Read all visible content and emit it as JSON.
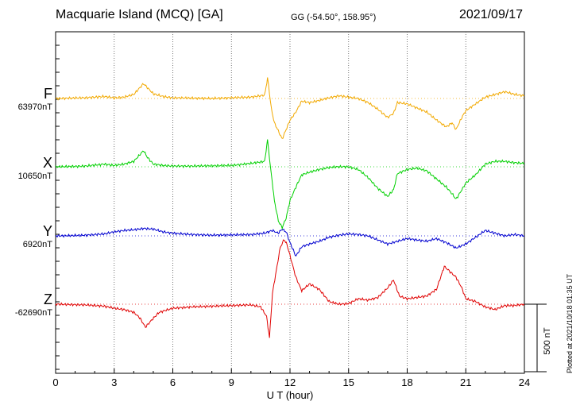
{
  "header": {
    "station": "Macquarie Island (MCQ)  [GA]",
    "coords": "GG (-54.50°, 158.95°)",
    "date": "2021/09/17"
  },
  "footer": {
    "plotted": "Plotted at 2021/10/18 01:35 UT"
  },
  "chart_data": {
    "type": "line",
    "title": "Macquarie Island (MCQ)  [GA]",
    "xlabel": "U T (hour)",
    "xlim": [
      0,
      24
    ],
    "xticks": [
      "0",
      "3",
      "6",
      "9",
      "12",
      "15",
      "18",
      "21",
      "24"
    ],
    "grid": true,
    "scale_bar": {
      "label": "500 nT",
      "value": 500
    },
    "series": [
      {
        "name": "F",
        "baseline_label": "63970nT",
        "color": "#f2a900",
        "x": [
          0,
          1.5,
          2.5,
          3,
          3.5,
          4,
          4.5,
          4.7,
          5,
          5.5,
          6,
          7,
          8,
          9,
          10,
          10.7,
          10.85,
          10.95,
          11.05,
          11.2,
          11.4,
          11.6,
          11.8,
          12,
          12.3,
          12.6,
          13,
          13.5,
          14,
          14.5,
          15,
          15.5,
          16,
          16.5,
          17,
          17.3,
          17.5,
          18,
          18.5,
          19,
          19.5,
          20,
          20.3,
          20.5,
          20.8,
          21,
          21.5,
          22,
          22.5,
          23,
          23.5,
          24
        ],
        "values": [
          0,
          5,
          15,
          5,
          10,
          30,
          110,
          80,
          35,
          15,
          5,
          3,
          0,
          5,
          10,
          25,
          150,
          40,
          -80,
          -180,
          -240,
          -300,
          -230,
          -160,
          -100,
          -20,
          -30,
          -15,
          5,
          20,
          10,
          0,
          -30,
          -80,
          -140,
          -110,
          -30,
          -40,
          -70,
          -100,
          -160,
          -210,
          -180,
          -230,
          -140,
          -90,
          -40,
          10,
          30,
          50,
          30,
          20
        ]
      },
      {
        "name": "X",
        "baseline_label": "10650nT",
        "color": "#00d000",
        "x": [
          0,
          1.5,
          2.5,
          3,
          3.5,
          4,
          4.5,
          4.7,
          5,
          5.5,
          6,
          7,
          8,
          9,
          10,
          10.7,
          10.85,
          10.95,
          11.05,
          11.2,
          11.4,
          11.6,
          11.8,
          12,
          12.3,
          12.6,
          13,
          13.5,
          14,
          14.5,
          15,
          15.5,
          16,
          16.5,
          17,
          17.3,
          17.5,
          18,
          18.5,
          19,
          19.5,
          20,
          20.3,
          20.5,
          20.8,
          21,
          21.5,
          22,
          22.5,
          23,
          23.5,
          24
        ],
        "values": [
          0,
          5,
          20,
          10,
          20,
          40,
          120,
          70,
          20,
          10,
          5,
          5,
          8,
          10,
          25,
          40,
          200,
          60,
          -60,
          -250,
          -400,
          -450,
          -380,
          -250,
          -150,
          -60,
          -40,
          -20,
          -5,
          0,
          0,
          -20,
          -80,
          -160,
          -220,
          -170,
          -50,
          -20,
          -10,
          -30,
          -90,
          -150,
          -200,
          -240,
          -170,
          -120,
          -60,
          20,
          40,
          40,
          30,
          25
        ]
      },
      {
        "name": "Y",
        "baseline_label": "6920nT",
        "color": "#0000d0",
        "x": [
          0,
          1.5,
          2.5,
          3,
          3.5,
          4,
          4.5,
          5,
          5.5,
          6,
          7,
          8,
          9,
          10,
          10.7,
          10.9,
          11.1,
          11.4,
          11.6,
          11.8,
          12,
          12.3,
          12.6,
          13,
          13.5,
          14,
          14.5,
          15,
          15.5,
          16,
          16.5,
          17,
          17.5,
          18,
          18.5,
          19,
          19.5,
          20,
          20.5,
          21,
          21.5,
          22,
          22.5,
          23,
          23.5,
          24
        ],
        "values": [
          0,
          5,
          15,
          30,
          40,
          45,
          55,
          50,
          30,
          20,
          10,
          5,
          8,
          10,
          20,
          30,
          40,
          20,
          50,
          30,
          -50,
          -150,
          -80,
          -60,
          -40,
          -10,
          5,
          15,
          10,
          0,
          -30,
          -60,
          -40,
          -20,
          -30,
          -40,
          -20,
          -50,
          -90,
          -60,
          -10,
          40,
          20,
          0,
          10,
          0
        ]
      },
      {
        "name": "Z",
        "baseline_label": "-62690nT",
        "color": "#e00000",
        "x": [
          0,
          1.5,
          2.5,
          3,
          3.5,
          4,
          4.3,
          4.6,
          4.9,
          5.3,
          6,
          7,
          8,
          9,
          10,
          10.5,
          10.8,
          10.95,
          11.1,
          11.3,
          11.5,
          11.7,
          11.85,
          12,
          12.3,
          12.6,
          13,
          13.5,
          14,
          14.5,
          15,
          15.5,
          16,
          16.5,
          17,
          17.3,
          17.6,
          18,
          18.5,
          19,
          19.5,
          19.9,
          20.2,
          20.5,
          20.8,
          21,
          21.5,
          22,
          22.5,
          23,
          23.5,
          24
        ],
        "values": [
          0,
          -5,
          -15,
          -30,
          -40,
          -60,
          -100,
          -170,
          -120,
          -60,
          -30,
          -20,
          -15,
          -10,
          -5,
          -20,
          -90,
          -250,
          80,
          250,
          420,
          480,
          440,
          360,
          200,
          100,
          150,
          110,
          20,
          0,
          5,
          40,
          30,
          50,
          120,
          180,
          60,
          40,
          50,
          60,
          110,
          280,
          240,
          200,
          120,
          40,
          20,
          -20,
          -40,
          -10,
          -10,
          0
        ]
      }
    ]
  }
}
